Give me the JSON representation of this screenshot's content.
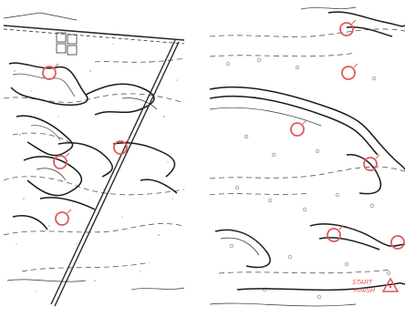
{
  "panels": [
    {
      "id": "left",
      "control_points": [
        {
          "code": ""
        },
        {
          "code": ""
        },
        {
          "code": ""
        },
        {
          "code": ""
        }
      ]
    },
    {
      "id": "right",
      "control_points": [
        {
          "code": ""
        },
        {
          "code": ""
        },
        {
          "code": ""
        },
        {
          "code": ""
        },
        {
          "code": ""
        },
        {
          "code": ""
        }
      ],
      "annotation": {
        "line1": "START",
        "line2": "FINISH"
      }
    }
  ],
  "colors": {
    "paper": "#ffffff",
    "contour": "#1a1a1a",
    "form_line": "#555555",
    "dot": "#9a9a9a",
    "control": "#e05a5a",
    "road": "#2a2a2a"
  },
  "icons": [
    "control-circle-icon",
    "start-triangle-icon"
  ]
}
